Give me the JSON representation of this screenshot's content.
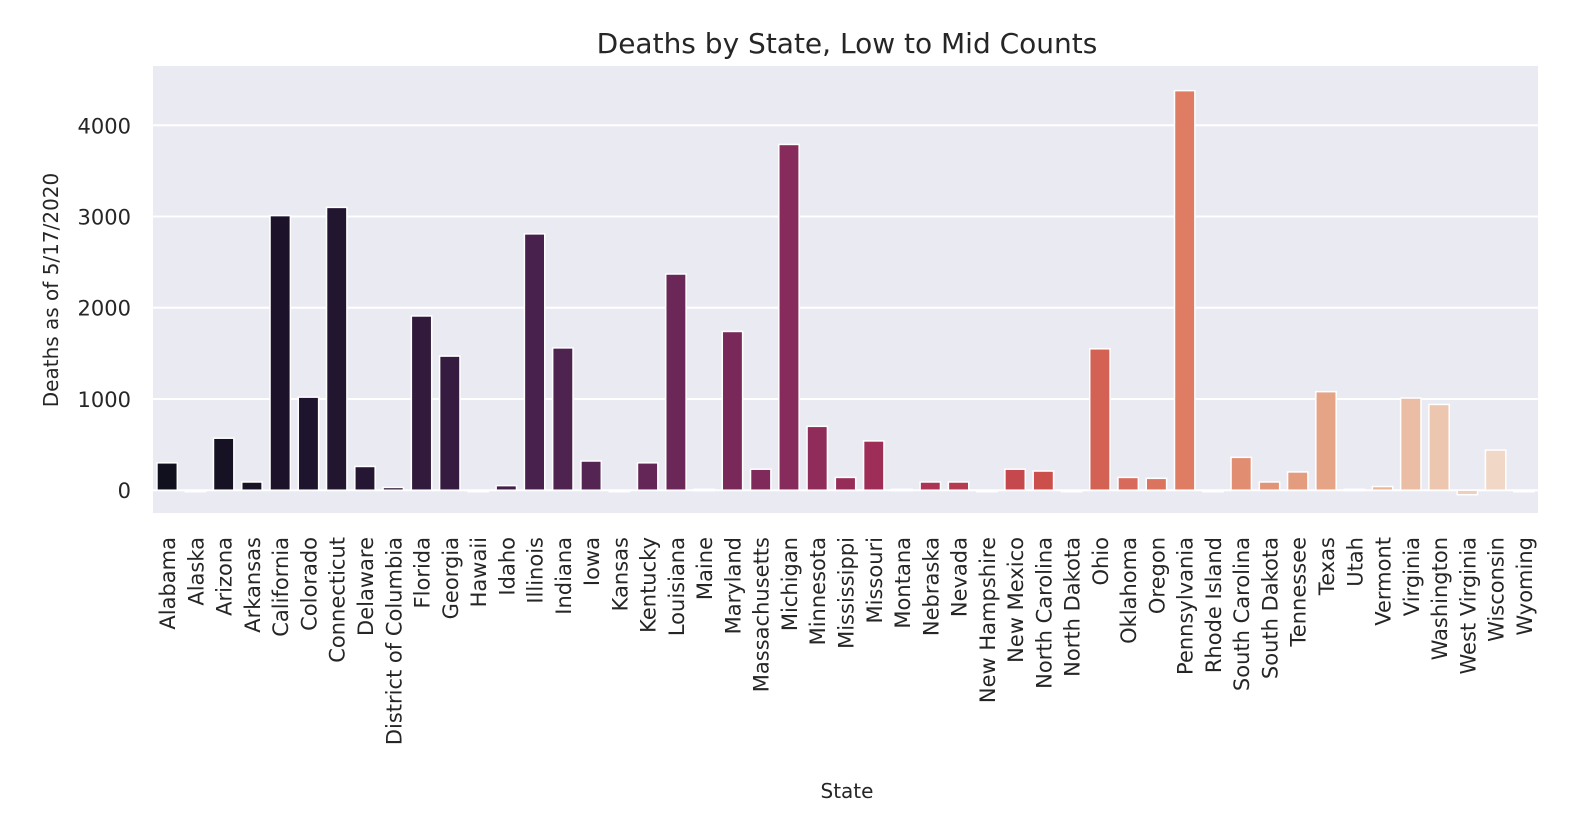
{
  "chart_data": {
    "type": "bar",
    "title": "Deaths by State, Low to Mid Counts",
    "xlabel": "State",
    "ylabel": "Deaths as of 5/17/2020",
    "ylim": [
      -250,
      4650
    ],
    "yticks": [
      0,
      1000,
      2000,
      3000,
      4000
    ],
    "grid": true,
    "legend": "none",
    "categories": [
      "Alabama",
      "Alaska",
      "Arizona",
      "Arkansas",
      "California",
      "Colorado",
      "Connecticut",
      "Delaware",
      "District of Columbia",
      "Florida",
      "Georgia",
      "Hawaii",
      "Idaho",
      "Illinois",
      "Indiana",
      "Iowa",
      "Kansas",
      "Kentucky",
      "Louisiana",
      "Maine",
      "Maryland",
      "Massachusetts",
      "Michigan",
      "Minnesota",
      "Mississippi",
      "Missouri",
      "Montana",
      "Nebraska",
      "Nevada",
      "New Hampshire",
      "New Mexico",
      "North Carolina",
      "North Dakota",
      "Ohio",
      "Oklahoma",
      "Oregon",
      "Pennsylvania",
      "Rhode Island",
      "South Carolina",
      "South Dakota",
      "Tennessee",
      "Texas",
      "Utah",
      "Vermont",
      "Virginia",
      "Washington",
      "West Virginia",
      "Wisconsin",
      "Wyoming"
    ],
    "values": [
      300,
      0,
      570,
      90,
      3010,
      1020,
      3100,
      260,
      30,
      1910,
      1470,
      0,
      50,
      2810,
      1560,
      320,
      0,
      300,
      2370,
      10,
      1740,
      230,
      3790,
      700,
      140,
      540,
      10,
      90,
      90,
      0,
      230,
      210,
      0,
      1550,
      140,
      130,
      4380,
      0,
      360,
      90,
      200,
      1080,
      10,
      40,
      1010,
      940,
      -50,
      440,
      0
    ],
    "palette": "rocket (dark navy through crimson to pale peach)",
    "background": "#eaeaf2",
    "gridline_color": "#ffffff"
  }
}
